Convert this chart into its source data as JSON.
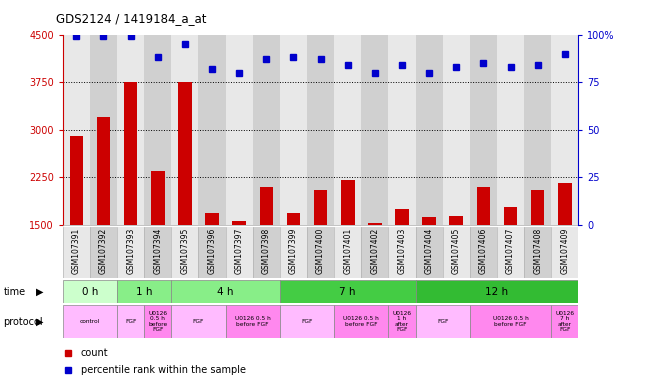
{
  "title": "GDS2124 / 1419184_a_at",
  "samples": [
    "GSM107391",
    "GSM107392",
    "GSM107393",
    "GSM107394",
    "GSM107395",
    "GSM107396",
    "GSM107397",
    "GSM107398",
    "GSM107399",
    "GSM107400",
    "GSM107401",
    "GSM107402",
    "GSM107403",
    "GSM107404",
    "GSM107405",
    "GSM107406",
    "GSM107407",
    "GSM107408",
    "GSM107409"
  ],
  "bar_values": [
    2900,
    3200,
    3750,
    2350,
    3750,
    1680,
    1550,
    2100,
    1680,
    2050,
    2200,
    1530,
    1750,
    1620,
    1630,
    2100,
    1780,
    2050,
    2150
  ],
  "percentile_values": [
    99,
    99,
    99,
    88,
    95,
    82,
    80,
    87,
    88,
    87,
    84,
    80,
    84,
    80,
    83,
    85,
    83,
    84,
    90
  ],
  "bar_color": "#cc0000",
  "dot_color": "#0000cc",
  "ylim_left": [
    1500,
    4500
  ],
  "ylim_right": [
    0,
    100
  ],
  "yticks_left": [
    1500,
    2250,
    3000,
    3750,
    4500
  ],
  "yticks_right": [
    0,
    25,
    50,
    75,
    100
  ],
  "grid_values": [
    2250,
    3000,
    3750
  ],
  "time_groups": [
    {
      "label": "0 h",
      "start": 0,
      "end": 2,
      "color": "#ccffcc"
    },
    {
      "label": "1 h",
      "start": 2,
      "end": 4,
      "color": "#88ee88"
    },
    {
      "label": "4 h",
      "start": 4,
      "end": 8,
      "color": "#88ee88"
    },
    {
      "label": "7 h",
      "start": 8,
      "end": 13,
      "color": "#44cc44"
    },
    {
      "label": "12 h",
      "start": 13,
      "end": 19,
      "color": "#33bb33"
    }
  ],
  "protocol_groups": [
    {
      "label": "control",
      "start": 0,
      "end": 2,
      "color": "#ffbbff"
    },
    {
      "label": "FGF",
      "start": 2,
      "end": 3,
      "color": "#ffbbff"
    },
    {
      "label": "U0126\n0.5 h\nbefore\nFGF",
      "start": 3,
      "end": 4,
      "color": "#ff88ee"
    },
    {
      "label": "FGF",
      "start": 4,
      "end": 6,
      "color": "#ffbbff"
    },
    {
      "label": "U0126 0.5 h\nbefore FGF",
      "start": 6,
      "end": 8,
      "color": "#ff88ee"
    },
    {
      "label": "FGF",
      "start": 8,
      "end": 10,
      "color": "#ffbbff"
    },
    {
      "label": "U0126 0.5 h\nbefore FGF",
      "start": 10,
      "end": 12,
      "color": "#ff88ee"
    },
    {
      "label": "U0126\n1 h\nafter\nFGF",
      "start": 12,
      "end": 13,
      "color": "#ff88ee"
    },
    {
      "label": "FGF",
      "start": 13,
      "end": 15,
      "color": "#ffbbff"
    },
    {
      "label": "U0126 0.5 h\nbefore FGF",
      "start": 15,
      "end": 18,
      "color": "#ff88ee"
    },
    {
      "label": "U0126\n7 h\nafter\nFGF",
      "start": 18,
      "end": 19,
      "color": "#ff88ee"
    }
  ],
  "left_axis_color": "#cc0000",
  "right_axis_color": "#0000cc",
  "bg_color": "#ffffff",
  "col_bg_light": "#e8e8e8",
  "col_bg_dark": "#d0d0d0"
}
